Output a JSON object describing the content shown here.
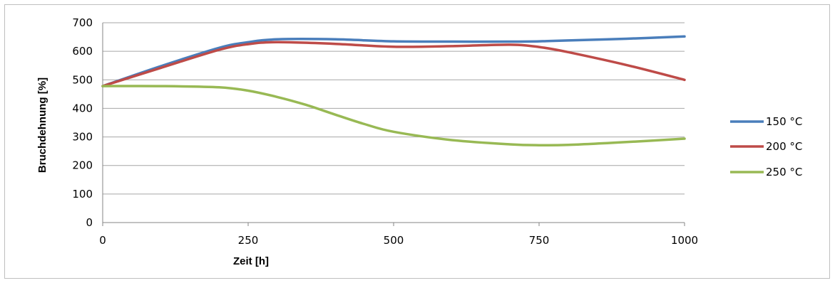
{
  "chart_data": {
    "type": "line",
    "xlabel": "Zeit [h]",
    "ylabel": "Bruchdehnung [%]",
    "xlim": [
      0,
      1000
    ],
    "ylim": [
      0,
      700
    ],
    "x_ticks": [
      "0",
      "250",
      "500",
      "750",
      "1000"
    ],
    "y_ticks": [
      "0",
      "100",
      "200",
      "300",
      "400",
      "500",
      "600",
      "700"
    ],
    "grid": "horizontal",
    "legend_position": "right",
    "series": [
      {
        "name": "150 °C",
        "color": "#4a7ebb",
        "x": [
          0,
          100,
          200,
          250,
          300,
          400,
          500,
          600,
          700,
          750,
          800,
          900,
          1000
        ],
        "y": [
          478,
          548,
          612,
          632,
          642,
          642,
          635,
          634,
          634,
          635,
          638,
          644,
          652
        ]
      },
      {
        "name": "200 °C",
        "color": "#be4b48",
        "x": [
          0,
          100,
          200,
          250,
          300,
          400,
          500,
          600,
          700,
          750,
          800,
          900,
          1000
        ],
        "y": [
          478,
          542,
          605,
          625,
          632,
          626,
          616,
          618,
          623,
          615,
          597,
          552,
          500
        ]
      },
      {
        "name": "250 °C",
        "color": "#98b954",
        "x": [
          0,
          100,
          200,
          250,
          300,
          350,
          400,
          450,
          500,
          600,
          700,
          750,
          800,
          900,
          1000
        ],
        "y": [
          478,
          478,
          474,
          462,
          440,
          412,
          378,
          345,
          318,
          289,
          274,
          271,
          272,
          282,
          294
        ]
      }
    ]
  }
}
